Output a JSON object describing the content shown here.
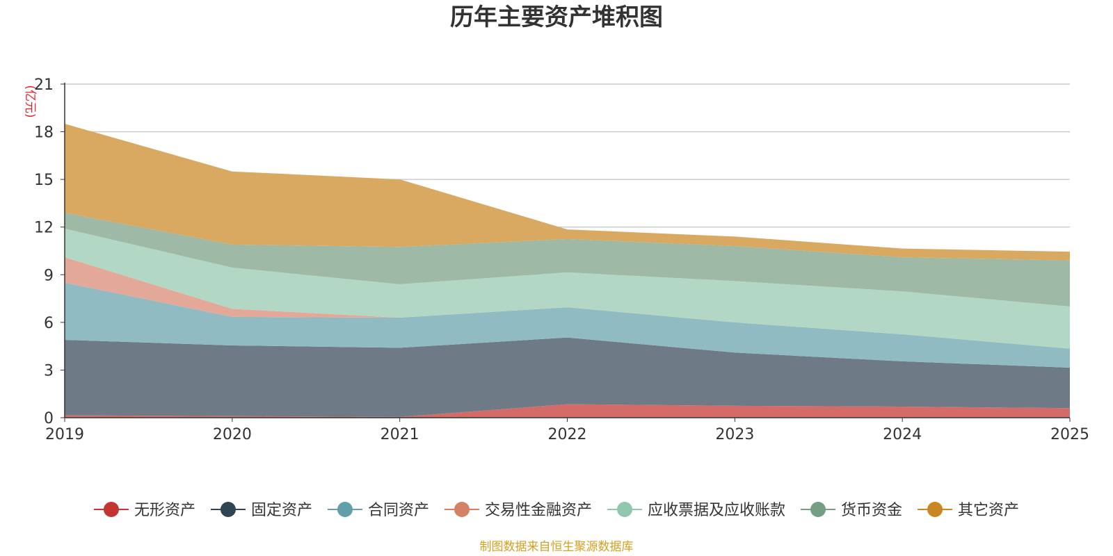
{
  "chart_data": {
    "type": "area",
    "stacked": true,
    "title": "历年主要资产堆积图",
    "unit": "(亿元)",
    "x": [
      "2019",
      "2020",
      "2021",
      "2022",
      "2023",
      "2024",
      "2025"
    ],
    "ylim": [
      0,
      21
    ],
    "yticks": [
      "0",
      "3",
      "6",
      "9",
      "12",
      "15",
      "18",
      "21"
    ],
    "grid": true,
    "legend_position": "bottom",
    "series": [
      {
        "name": "无形资产",
        "color": "#c23531",
        "fill": "#d46b69",
        "values": [
          0.15,
          0.1,
          0.05,
          0.85,
          0.75,
          0.7,
          0.6
        ]
      },
      {
        "name": "固定资产",
        "color": "#2f4554",
        "fill": "#6e7b87",
        "values": [
          4.75,
          4.45,
          4.35,
          4.2,
          3.35,
          2.85,
          2.55
        ]
      },
      {
        "name": "合同资产",
        "color": "#61a0a8",
        "fill": "#90bbc3",
        "values": [
          3.6,
          1.8,
          1.9,
          1.9,
          1.9,
          1.7,
          1.2
        ]
      },
      {
        "name": "交易性金融资产",
        "color": "#d48265",
        "fill": "#e3a897",
        "values": [
          1.6,
          0.5,
          0.0,
          0.0,
          0.0,
          0.0,
          0.0
        ]
      },
      {
        "name": "应收票据及应收账款",
        "color": "#91c7ae",
        "fill": "#b2d8c5",
        "values": [
          1.8,
          2.6,
          2.1,
          2.2,
          2.6,
          2.7,
          2.65
        ]
      },
      {
        "name": "货币资金",
        "color": "#749f83",
        "fill": "#9eb9a6",
        "values": [
          1.0,
          1.45,
          2.35,
          2.1,
          2.2,
          2.15,
          2.9
        ]
      },
      {
        "name": "其它资产",
        "color": "#ca8622",
        "fill": "#d9a961",
        "values": [
          5.6,
          4.6,
          4.25,
          0.6,
          0.6,
          0.55,
          0.55
        ]
      }
    ]
  },
  "footer": {
    "source": "制图数据来自恒生聚源数据库",
    "source_color": "#d4a020",
    "unit_color": "#e8202a"
  }
}
